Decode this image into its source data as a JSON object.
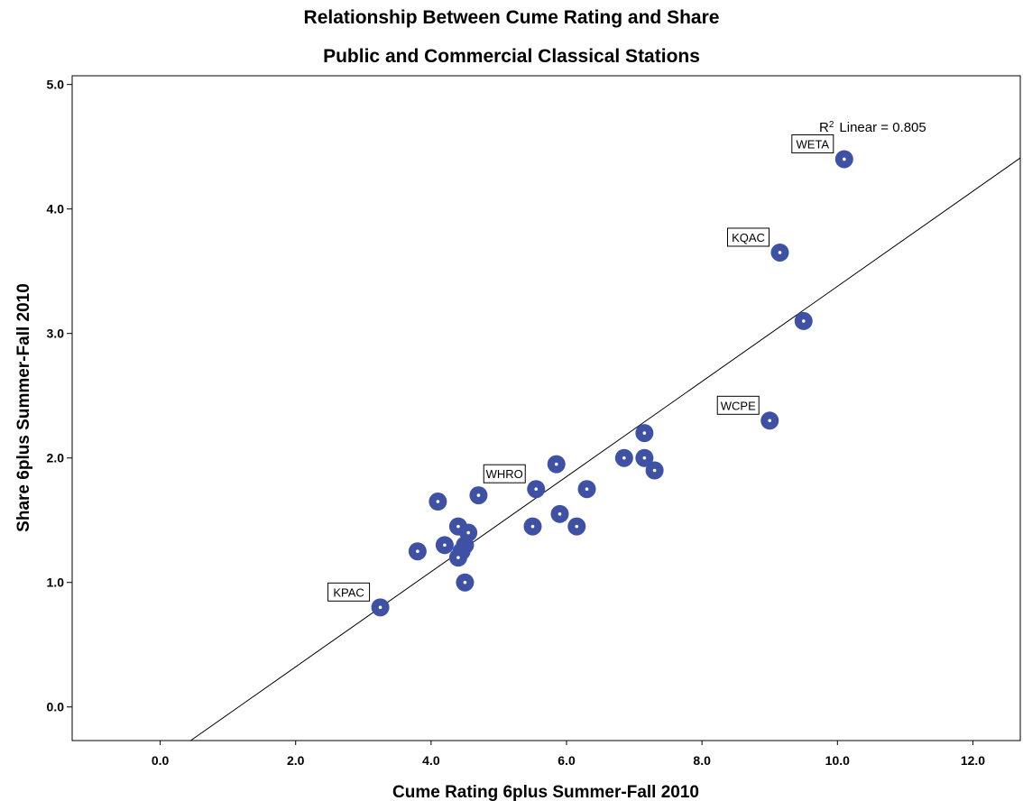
{
  "chart_data": {
    "type": "scatter",
    "title": "Relationship Between Cume Rating and Share",
    "subtitle": "Public and Commercial Classical Stations",
    "xlabel": "Cume Rating 6plus Summer-Fall 2010",
    "ylabel": "Share 6plus Summer-Fall 2010",
    "xlim": [
      -1.3,
      12.7
    ],
    "ylim": [
      -0.27,
      5.07
    ],
    "x_ticks": [
      "0.0",
      "2.0",
      "4.0",
      "6.0",
      "8.0",
      "10.0",
      "12.0"
    ],
    "y_ticks": [
      "0.0",
      "1.0",
      "2.0",
      "3.0",
      "4.0",
      "5.0"
    ],
    "x_tick_values": [
      0,
      2,
      4,
      6,
      8,
      10,
      12
    ],
    "y_tick_values": [
      0,
      1,
      2,
      3,
      4,
      5
    ],
    "grid": false,
    "marker_color": "#3f51a5",
    "points": [
      {
        "x": 10.1,
        "y": 4.4,
        "label": "WETA"
      },
      {
        "x": 9.15,
        "y": 3.65,
        "label": "KQAC"
      },
      {
        "x": 9.5,
        "y": 3.1,
        "label": ""
      },
      {
        "x": 9.0,
        "y": 2.3,
        "label": "WCPE"
      },
      {
        "x": 7.15,
        "y": 2.2,
        "label": ""
      },
      {
        "x": 7.15,
        "y": 2.0,
        "label": ""
      },
      {
        "x": 6.85,
        "y": 2.0,
        "label": ""
      },
      {
        "x": 7.3,
        "y": 1.9,
        "label": ""
      },
      {
        "x": 5.85,
        "y": 1.95,
        "label": ""
      },
      {
        "x": 6.3,
        "y": 1.75,
        "label": ""
      },
      {
        "x": 5.55,
        "y": 1.75,
        "label": "WHRO"
      },
      {
        "x": 5.9,
        "y": 1.55,
        "label": ""
      },
      {
        "x": 5.5,
        "y": 1.45,
        "label": ""
      },
      {
        "x": 6.15,
        "y": 1.45,
        "label": ""
      },
      {
        "x": 4.7,
        "y": 1.7,
        "label": ""
      },
      {
        "x": 4.1,
        "y": 1.65,
        "label": ""
      },
      {
        "x": 4.4,
        "y": 1.45,
        "label": ""
      },
      {
        "x": 4.55,
        "y": 1.4,
        "label": ""
      },
      {
        "x": 4.5,
        "y": 1.3,
        "label": ""
      },
      {
        "x": 4.2,
        "y": 1.3,
        "label": ""
      },
      {
        "x": 4.45,
        "y": 1.25,
        "label": ""
      },
      {
        "x": 4.4,
        "y": 1.2,
        "label": ""
      },
      {
        "x": 3.8,
        "y": 1.25,
        "label": ""
      },
      {
        "x": 4.5,
        "y": 1.0,
        "label": ""
      },
      {
        "x": 3.25,
        "y": 0.8,
        "label": "KPAC"
      }
    ],
    "fit_line": {
      "type": "linear",
      "r2_label": "Linear = 0.805",
      "start": {
        "x": 0.45,
        "y": -0.27
      },
      "end": {
        "x": 12.7,
        "y": 4.41
      }
    }
  }
}
